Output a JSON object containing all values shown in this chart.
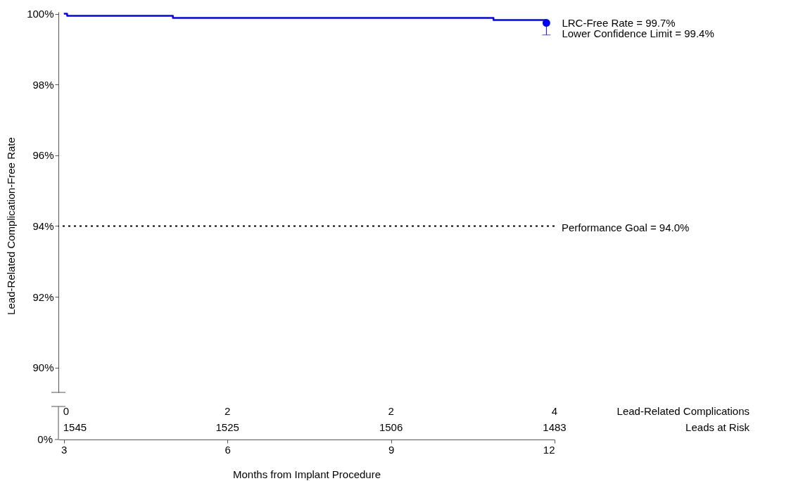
{
  "chart_data": {
    "type": "step",
    "xlabel": "Months from Implant Procedure",
    "ylabel": "Lead-Related Complication-Free Rate",
    "xlim": [
      2.9,
      12
    ],
    "xticks": [
      3,
      6,
      9,
      12
    ],
    "ylim": [
      89.3,
      100.05
    ],
    "yticks": [
      {
        "value": 90,
        "label": "90%"
      },
      {
        "value": 92,
        "label": "92%"
      },
      {
        "value": 94,
        "label": "94%"
      },
      {
        "value": 96,
        "label": "96%"
      },
      {
        "value": 98,
        "label": "98%"
      },
      {
        "value": 100,
        "label": "100%"
      }
    ],
    "series": [
      {
        "type": "step",
        "color": "#0000ff",
        "x": [
          3,
          3.06,
          5.0,
          10.88,
          11.85
        ],
        "values": [
          100,
          99.94,
          99.88,
          99.82,
          99.82
        ]
      },
      {
        "type": "scatter",
        "color": "#0000ff",
        "x": [
          11.85
        ],
        "values": [
          99.74
        ],
        "errors": [
          [
            99.4,
            99.74
          ]
        ]
      }
    ],
    "ref_lines": [
      {
        "axis": "y",
        "value": 94,
        "label": "Performance Goal = 94.0%",
        "color": "#000000",
        "line_style": "dotted"
      }
    ],
    "annotations": [
      {
        "text": "LRC-Free Rate = 99.7%",
        "x": 11.85,
        "y": 99.74
      },
      {
        "text": "Lower Confidence Limit = 99.4%",
        "x": 11.85,
        "y": 99.43
      },
      "0",
      "2",
      "2",
      "4",
      "Lead-Related Complications",
      "1545",
      "1525",
      "1506",
      "1483",
      "Leads at Risk",
      "0%"
    ],
    "grid": false
  }
}
